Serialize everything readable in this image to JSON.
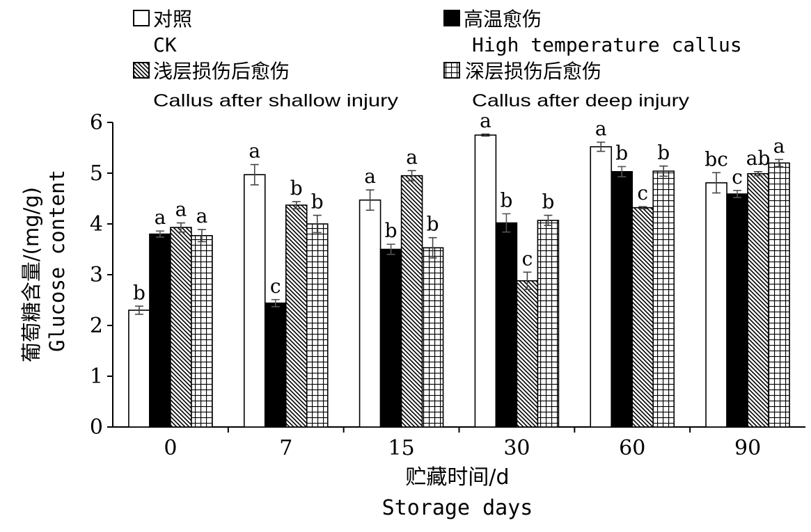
{
  "chart_data": {
    "type": "bar",
    "xlabel": "贮藏时间/d",
    "xlabel_en": "Storage days",
    "ylabel": "葡萄糖含量/(mg/g)",
    "ylabel_en": "Glucose content",
    "ylim": [
      0,
      6
    ],
    "yticks": [
      "0",
      "1",
      "2",
      "3",
      "4",
      "5",
      "6"
    ],
    "categories": [
      "0",
      "7",
      "15",
      "30",
      "60",
      "90"
    ],
    "legend_position": "top",
    "series": [
      {
        "name": "对照",
        "name_en": "CK",
        "pattern": "white",
        "values": [
          2.3,
          4.97,
          4.47,
          5.75,
          5.52,
          4.81
        ],
        "errors": [
          0.08,
          0.2,
          0.2,
          0.02,
          0.09,
          0.2
        ],
        "letters": [
          "b",
          "a",
          "a",
          "a",
          "a",
          "bc"
        ]
      },
      {
        "name": "高温愈伤",
        "name_en": "High temperature callus",
        "pattern": "black",
        "values": [
          3.8,
          2.44,
          3.5,
          4.02,
          5.03,
          4.59
        ],
        "errors": [
          0.06,
          0.07,
          0.1,
          0.18,
          0.1,
          0.07
        ],
        "letters": [
          "a",
          "c",
          "b",
          "b",
          "b",
          "c"
        ]
      },
      {
        "name": "浅层损伤后愈伤",
        "name_en": "Callus after shallow injury",
        "pattern": "hatch",
        "values": [
          3.93,
          4.37,
          4.95,
          2.88,
          4.32,
          4.99
        ],
        "errors": [
          0.09,
          0.07,
          0.1,
          0.17,
          0.02,
          0.04
        ],
        "letters": [
          "a",
          "b",
          "a",
          "c",
          "c",
          "ab"
        ]
      },
      {
        "name": "深层损伤后愈伤",
        "name_en": "Callus after deep injury",
        "pattern": "grid",
        "values": [
          3.77,
          4.0,
          3.53,
          4.07,
          5.04,
          5.2
        ],
        "errors": [
          0.12,
          0.17,
          0.2,
          0.1,
          0.1,
          0.07
        ],
        "letters": [
          "a",
          "b",
          "b",
          "b",
          "b",
          "a"
        ]
      }
    ]
  }
}
